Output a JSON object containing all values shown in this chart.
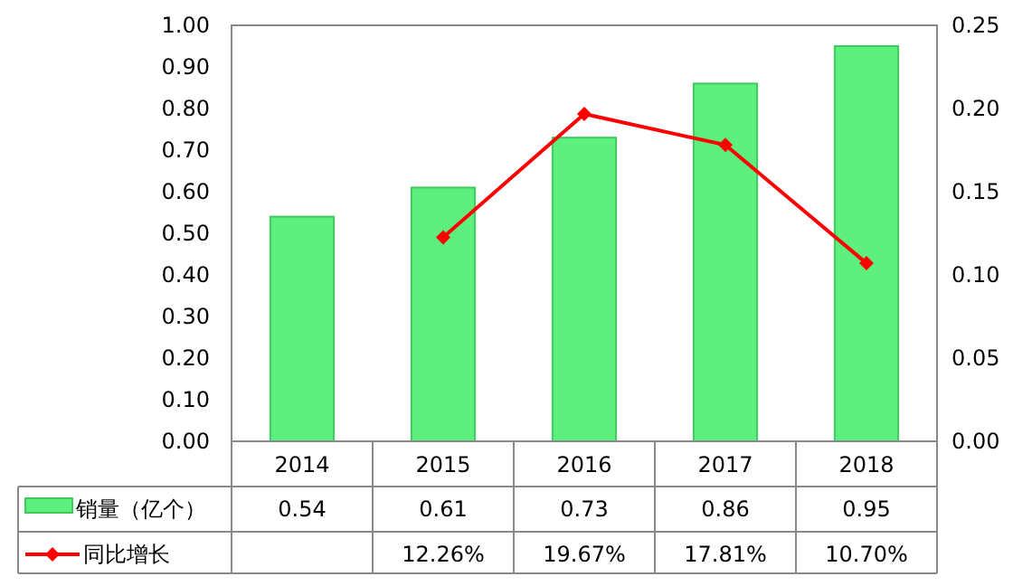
{
  "chart_data": {
    "type": "bar",
    "categories": [
      "2014",
      "2015",
      "2016",
      "2017",
      "2018"
    ],
    "series": [
      {
        "name": "销量（亿个）",
        "color": "#5ef07f",
        "values": [
          0.54,
          0.61,
          0.73,
          0.86,
          0.95
        ],
        "value_labels": [
          "0.54",
          "0.61",
          "0.73",
          "0.86",
          "0.95"
        ]
      },
      {
        "name": "同比增长",
        "type": "line",
        "axis": "y2",
        "color": "#ff0000",
        "marker": "diamond",
        "values": [
          null,
          0.1226,
          0.1967,
          0.1781,
          0.107
        ],
        "value_labels": [
          null,
          "12.26%",
          "19.67%",
          "17.81%",
          "10.70%"
        ]
      }
    ],
    "ylim": [
      0,
      1
    ],
    "yticks": [
      {
        "value": 0,
        "label": "0.00"
      },
      {
        "value": 0.1,
        "label": "0.10"
      },
      {
        "value": 0.2,
        "label": "0.20"
      },
      {
        "value": 0.3,
        "label": "0.30"
      },
      {
        "value": 0.4,
        "label": "0.40"
      },
      {
        "value": 0.5,
        "label": "0.50"
      },
      {
        "value": 0.6,
        "label": "0.60"
      },
      {
        "value": 0.7,
        "label": "0.70"
      },
      {
        "value": 0.8,
        "label": "0.80"
      },
      {
        "value": 0.9,
        "label": "0.90"
      },
      {
        "value": 1,
        "label": "1.00"
      }
    ],
    "y2lim": [
      0,
      0.25
    ],
    "y2ticks": [
      {
        "value": 0,
        "label": "0.00"
      },
      {
        "value": 0.05,
        "label": "0.05"
      },
      {
        "value": 0.1,
        "label": "0.10"
      },
      {
        "value": 0.15,
        "label": "0.15"
      },
      {
        "value": 0.2,
        "label": "0.20"
      },
      {
        "value": 0.25,
        "label": "0.25"
      }
    ],
    "legend": "bottom"
  }
}
